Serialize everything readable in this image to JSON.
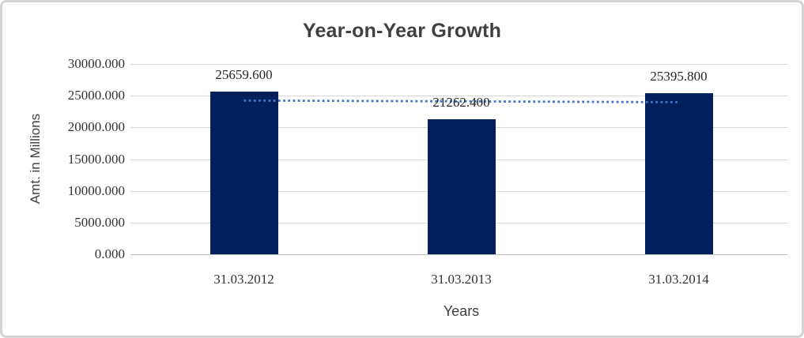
{
  "chart_data": {
    "type": "bar",
    "title": "Year-on-Year Growth",
    "xlabel": "Years",
    "ylabel": "Amt. in Millions",
    "categories": [
      "31.03.2012",
      "31.03.2013",
      "31.03.2014"
    ],
    "values": [
      25659.6,
      21262.4,
      25395.8
    ],
    "data_labels": [
      "25659.600",
      "21262.400",
      "25395.800"
    ],
    "y_ticks": [
      "30000.000",
      "25000.000",
      "20000.000",
      "15000.000",
      "10000.000",
      "5000.000",
      "0.000"
    ],
    "y_tick_values": [
      30000,
      25000,
      20000,
      15000,
      10000,
      5000,
      0
    ],
    "ylim": [
      0,
      30000
    ],
    "grid": "horizontal-on",
    "legend": "none",
    "bar_color": "#02215c",
    "gridline_color": "#d9d9d9",
    "trendline": {
      "type": "linear",
      "style": "dotted",
      "color": "#4472c4",
      "fitted_start_value": 24237.8,
      "fitted_end_value": 23974.1
    }
  }
}
